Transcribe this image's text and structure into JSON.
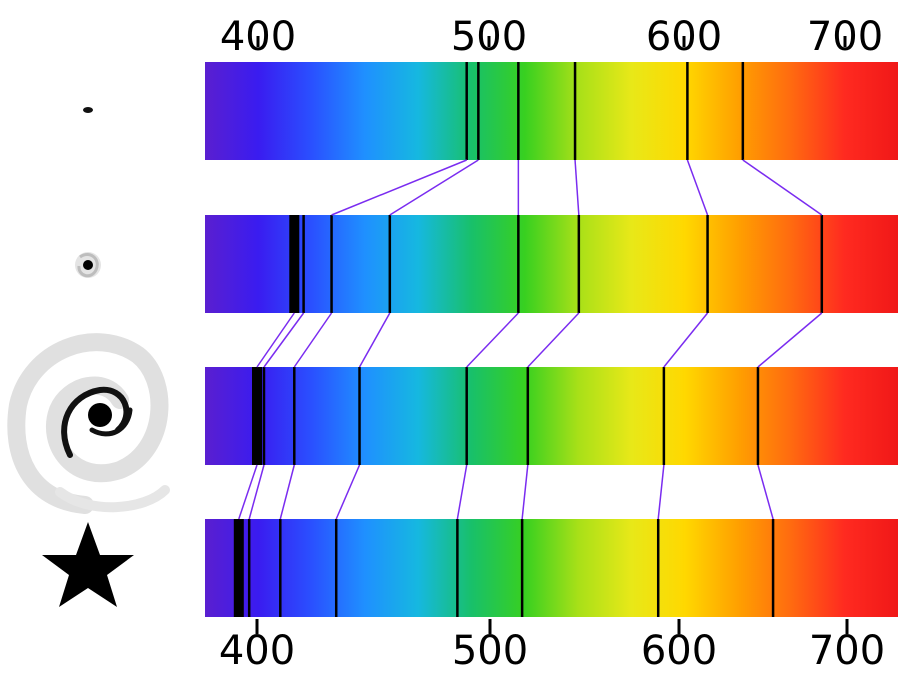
{
  "top_axis": {
    "ticks": [
      {
        "value": 400,
        "label": "400"
      },
      {
        "value": 500,
        "label": "500"
      },
      {
        "value": 600,
        "label": "600"
      },
      {
        "value": 700,
        "label": "700"
      }
    ]
  },
  "bottom_axis": {
    "ticks": [
      {
        "value": 400,
        "label": "400"
      },
      {
        "value": 500,
        "label": "500"
      },
      {
        "value": 600,
        "label": "600"
      },
      {
        "value": 700,
        "label": "700"
      }
    ]
  },
  "spectrum_colors": [
    "#5a1fd0",
    "#3a1cf0",
    "#2a50ff",
    "#1f90ff",
    "#16b8e0",
    "#18c06a",
    "#38d020",
    "#a8e018",
    "#e8e818",
    "#ffd800",
    "#ffa000",
    "#ff6a10",
    "#ff2a20",
    "#f01818"
  ],
  "line_color": "#000000",
  "connector_color": "#7a2cf0",
  "spectra": [
    {
      "object_icon": "distant-galaxy-dot-icon",
      "lines": [
        490,
        495,
        515,
        545,
        605,
        638
      ]
    },
    {
      "object_icon": "small-spiral-galaxy-icon",
      "lines": [
        416,
        420,
        432,
        457,
        515,
        547,
        617,
        685
      ]
    },
    {
      "object_icon": "large-spiral-galaxy-icon",
      "lines": [
        400,
        403,
        416,
        444,
        490,
        520,
        592,
        647
      ]
    },
    {
      "object_icon": "star-icon",
      "lines": [
        393,
        397,
        410,
        434,
        486,
        517,
        589,
        656
      ]
    }
  ]
}
